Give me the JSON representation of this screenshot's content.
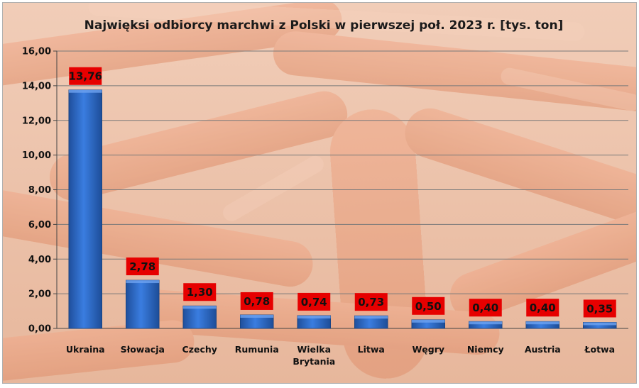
{
  "chart_data": {
    "type": "bar",
    "title": "Najwięksi odbiorcy marchwi z Polski w pierwszej poł. 2023 r. [tys. ton]",
    "xlabel": "",
    "ylabel": "",
    "categories": [
      "Ukraina",
      "Słowacja",
      "Czechy",
      "Rumunia",
      "Wielka Brytania",
      "Litwa",
      "Węgry",
      "Niemcy",
      "Austria",
      "Łotwa"
    ],
    "values": [
      13.76,
      2.78,
      1.3,
      0.78,
      0.74,
      0.73,
      0.5,
      0.4,
      0.4,
      0.35
    ],
    "data_labels": [
      "13,76",
      "2,78",
      "1,30",
      "0,78",
      "0,74",
      "0,73",
      "0,50",
      "0,40",
      "0,40",
      "0,35"
    ],
    "ylim": [
      0,
      16
    ],
    "yticks": [
      0,
      2,
      4,
      6,
      8,
      10,
      12,
      14,
      16
    ],
    "ytick_labels": [
      "0,00",
      "2,00",
      "4,00",
      "6,00",
      "8,00",
      "10,00",
      "12,00",
      "14,00",
      "16,00"
    ],
    "grid": true,
    "legend": "none",
    "colors": {
      "bar": "#2f6fd0",
      "bar_dark": "#1c4a96",
      "label_box": "#e60000",
      "background": "#ecc4ad",
      "gridline": "#7a7a7a"
    }
  }
}
